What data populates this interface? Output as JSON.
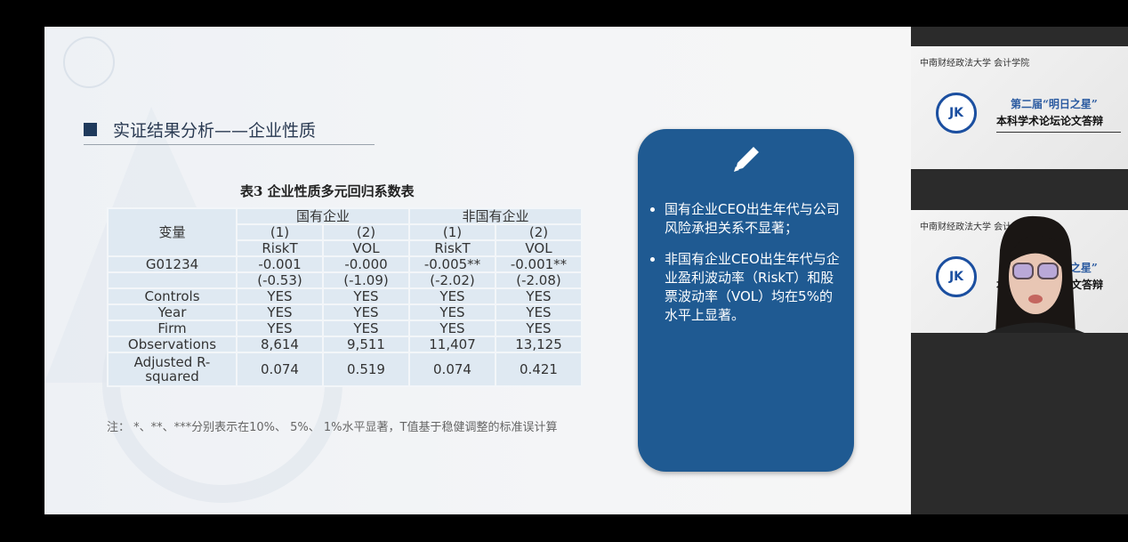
{
  "slide": {
    "title": "实证结果分析——企业性质",
    "table_caption": "表3  企业性质多元回归系数表",
    "table": {
      "var_header": "变量",
      "groups": [
        "国有企业",
        "非国有企业"
      ],
      "model_nums": [
        "(1)",
        "(2)",
        "(1)",
        "(2)"
      ],
      "dep_vars": [
        "RiskT",
        "VOL",
        "RiskT",
        "VOL"
      ],
      "rows": [
        {
          "label": "G01234",
          "values": [
            "-0.001",
            "-0.000",
            "-0.005**",
            "-0.001**"
          ]
        },
        {
          "label": "",
          "values": [
            "(-0.53)",
            "(-1.09)",
            "(-2.02)",
            "(-2.08)"
          ]
        },
        {
          "label": "Controls",
          "values": [
            "YES",
            "YES",
            "YES",
            "YES"
          ]
        },
        {
          "label": "Year",
          "values": [
            "YES",
            "YES",
            "YES",
            "YES"
          ]
        },
        {
          "label": "Firm",
          "values": [
            "YES",
            "YES",
            "YES",
            "YES"
          ]
        },
        {
          "label": "Observations",
          "values": [
            "8,614",
            "9,511",
            "11,407",
            "13,125"
          ]
        },
        {
          "label": "Adjusted R-squared",
          "values": [
            "0.074",
            "0.519",
            "0.074",
            "0.421"
          ]
        }
      ]
    },
    "note": "注： *、**、***分别表示在10%、 5%、 1%水平显著，T值基于稳健调整的标准误计算",
    "card": {
      "icon": "pencil-icon",
      "bullets": [
        "国有企业CEO出生年代与公司风险承担关系不显著；",
        "非国有企业CEO出生年代与企业盈利波动率（RiskT）和股票波动率（VOL）均在5%的水平上显著。"
      ]
    },
    "colors": {
      "card": "#1f5a92",
      "table": "#dfe9f2"
    }
  },
  "participants": {
    "university": "中南财经政法大学 会计学院",
    "event_line1": "第二届“明日之星”",
    "event_line2": "本科学术论坛论文答辩",
    "logo_text": "JK"
  }
}
